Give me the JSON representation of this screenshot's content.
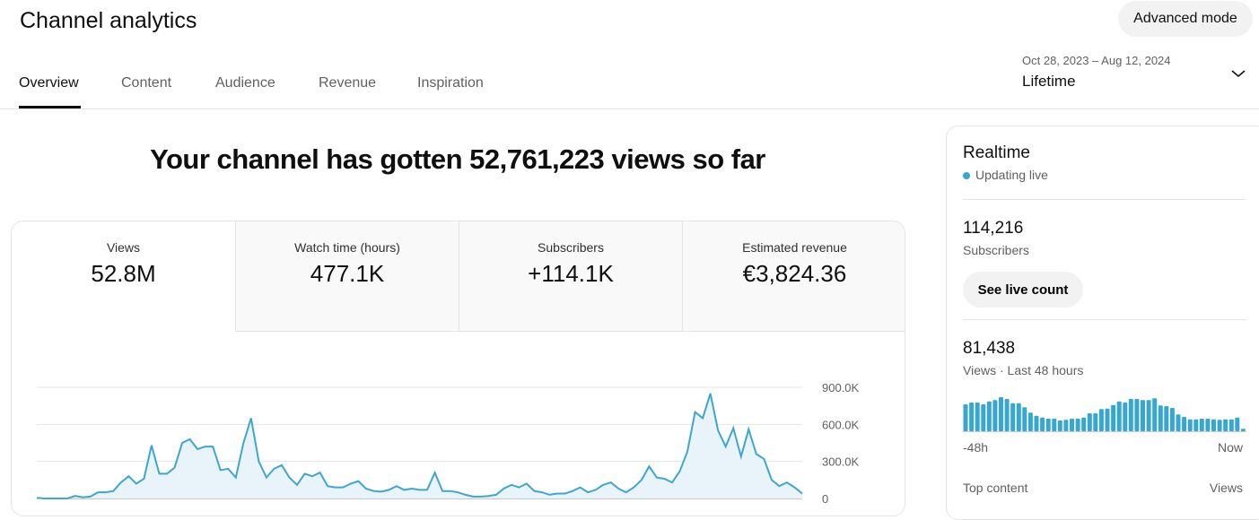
{
  "header": {
    "title": "Channel analytics",
    "advanced_mode": "Advanced mode",
    "tabs": [
      {
        "label": "Overview"
      },
      {
        "label": "Content"
      },
      {
        "label": "Audience"
      },
      {
        "label": "Revenue"
      },
      {
        "label": "Inspiration"
      }
    ],
    "date_range": "Oct 28, 2023 – Aug 12, 2024",
    "period": "Lifetime"
  },
  "main": {
    "headline": "Your channel has gotten 52,761,223 views so far",
    "metrics": [
      {
        "label": "Views",
        "value": "52.8M"
      },
      {
        "label": "Watch time (hours)",
        "value": "477.1K"
      },
      {
        "label": "Subscribers",
        "value": "+114.1K"
      },
      {
        "label": "Estimated revenue",
        "value": "€3,824.36"
      }
    ]
  },
  "chart_data": {
    "type": "area",
    "x_range": [
      "Oct 28, 2023",
      "Aug 12, 2024"
    ],
    "ylim": [
      0,
      900000
    ],
    "yticks": [
      "0",
      "300.0K",
      "600.0K",
      "900.0K"
    ],
    "grid": true,
    "color": "#3ea6cf",
    "values_k": [
      5,
      0,
      0,
      0,
      0,
      20,
      10,
      15,
      50,
      50,
      60,
      130,
      180,
      120,
      160,
      430,
      200,
      200,
      250,
      450,
      480,
      400,
      420,
      420,
      230,
      240,
      170,
      450,
      650,
      300,
      170,
      240,
      270,
      170,
      110,
      200,
      180,
      210,
      100,
      90,
      90,
      120,
      140,
      80,
      60,
      55,
      70,
      100,
      70,
      80,
      70,
      70,
      210,
      60,
      60,
      50,
      30,
      15,
      15,
      20,
      30,
      80,
      110,
      90,
      120,
      60,
      50,
      30,
      40,
      40,
      60,
      90,
      50,
      70,
      110,
      130,
      80,
      50,
      90,
      150,
      260,
      170,
      160,
      130,
      220,
      380,
      700,
      650,
      850,
      550,
      420,
      570,
      340,
      560,
      360,
      320,
      150,
      100,
      130,
      90,
      40
    ]
  },
  "realtime": {
    "title": "Realtime",
    "status": "Updating live",
    "subscribers": "114,216",
    "subscribers_label": "Subscribers",
    "see_live": "See live count",
    "views": "81,438",
    "views_label": "Views · Last 48 hours",
    "axis_start": "-48h",
    "axis_end": "Now",
    "top_content": "Top content",
    "top_content_col": "Views",
    "color": "#36a7d0",
    "hourly_relative": [
      90,
      96,
      96,
      90,
      100,
      104,
      114,
      108,
      94,
      94,
      80,
      62,
      52,
      46,
      42,
      42,
      36,
      38,
      42,
      42,
      46,
      60,
      60,
      74,
      76,
      88,
      100,
      96,
      108,
      108,
      104,
      104,
      110,
      86,
      84,
      78,
      56,
      48,
      40,
      40,
      42,
      42,
      40,
      38,
      40,
      40,
      46,
      8
    ]
  }
}
